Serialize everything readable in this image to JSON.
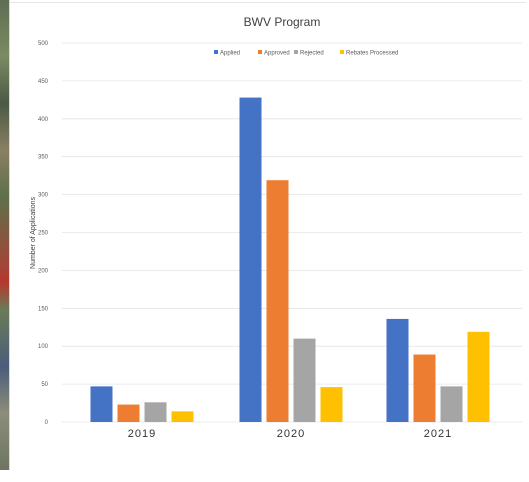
{
  "chart_data": {
    "type": "bar",
    "title": "BWV Program",
    "ylabel": "Number of Applications",
    "xlabel": "",
    "categories": [
      "2019",
      "2020",
      "2021"
    ],
    "ylim": [
      0,
      500
    ],
    "yticks": [
      0,
      50,
      100,
      150,
      200,
      250,
      300,
      350,
      400,
      450,
      500
    ],
    "grid": true,
    "legend_position": "top",
    "series": [
      {
        "name": "Applied",
        "color": "#4472c4",
        "values": [
          47,
          428,
          136
        ]
      },
      {
        "name": "Approved",
        "color": "#ed7d31",
        "values": [
          23,
          319,
          89
        ]
      },
      {
        "name": "Rejected",
        "color": "#a5a5a5",
        "values": [
          26,
          110,
          47
        ]
      },
      {
        "name": "Rebates Processed",
        "color": "#ffc000",
        "values": [
          14,
          46,
          119
        ]
      }
    ]
  }
}
